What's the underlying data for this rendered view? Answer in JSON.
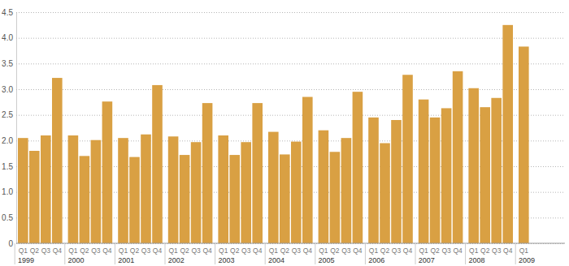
{
  "chart_data": {
    "type": "bar",
    "categories": [
      "Q1",
      "Q2",
      "Q3",
      "Q4",
      "Q1",
      "Q2",
      "Q3",
      "Q4",
      "Q1",
      "Q2",
      "Q3",
      "Q4",
      "Q1",
      "Q2",
      "Q3",
      "Q4",
      "Q1",
      "Q2",
      "Q3",
      "Q4",
      "Q1",
      "Q2",
      "Q3",
      "Q4",
      "Q1",
      "Q2",
      "Q3",
      "Q4",
      "Q1",
      "Q2",
      "Q3",
      "Q4",
      "Q1",
      "Q2",
      "Q3",
      "Q4",
      "Q1",
      "Q2",
      "Q3",
      "Q4",
      "Q1"
    ],
    "groups": [
      "1999",
      "2000",
      "2001",
      "2002",
      "2003",
      "2004",
      "2005",
      "2006",
      "2007",
      "2008",
      "2009"
    ],
    "values": [
      2.05,
      1.8,
      2.1,
      3.22,
      2.1,
      1.7,
      2.01,
      2.76,
      2.05,
      1.68,
      2.12,
      3.08,
      2.08,
      1.72,
      1.97,
      2.73,
      2.1,
      1.72,
      1.97,
      2.73,
      2.17,
      1.73,
      1.98,
      2.85,
      2.2,
      1.78,
      2.05,
      2.95,
      2.45,
      1.95,
      2.4,
      3.28,
      2.8,
      2.45,
      2.63,
      3.35,
      3.02,
      2.65,
      2.83,
      4.25,
      3.83
    ],
    "color": "#d9a043",
    "ylim": [
      0,
      4.5
    ],
    "yticks": [
      0,
      0.5,
      {
        "value": 1,
        "label": "1.0"
      },
      1.5,
      {
        "value": 2,
        "label": "2.0"
      },
      2.5,
      {
        "value": 3,
        "label": "3.0"
      },
      3.5,
      {
        "value": 4,
        "label": "4.0"
      },
      4.5
    ],
    "grid": true
  }
}
